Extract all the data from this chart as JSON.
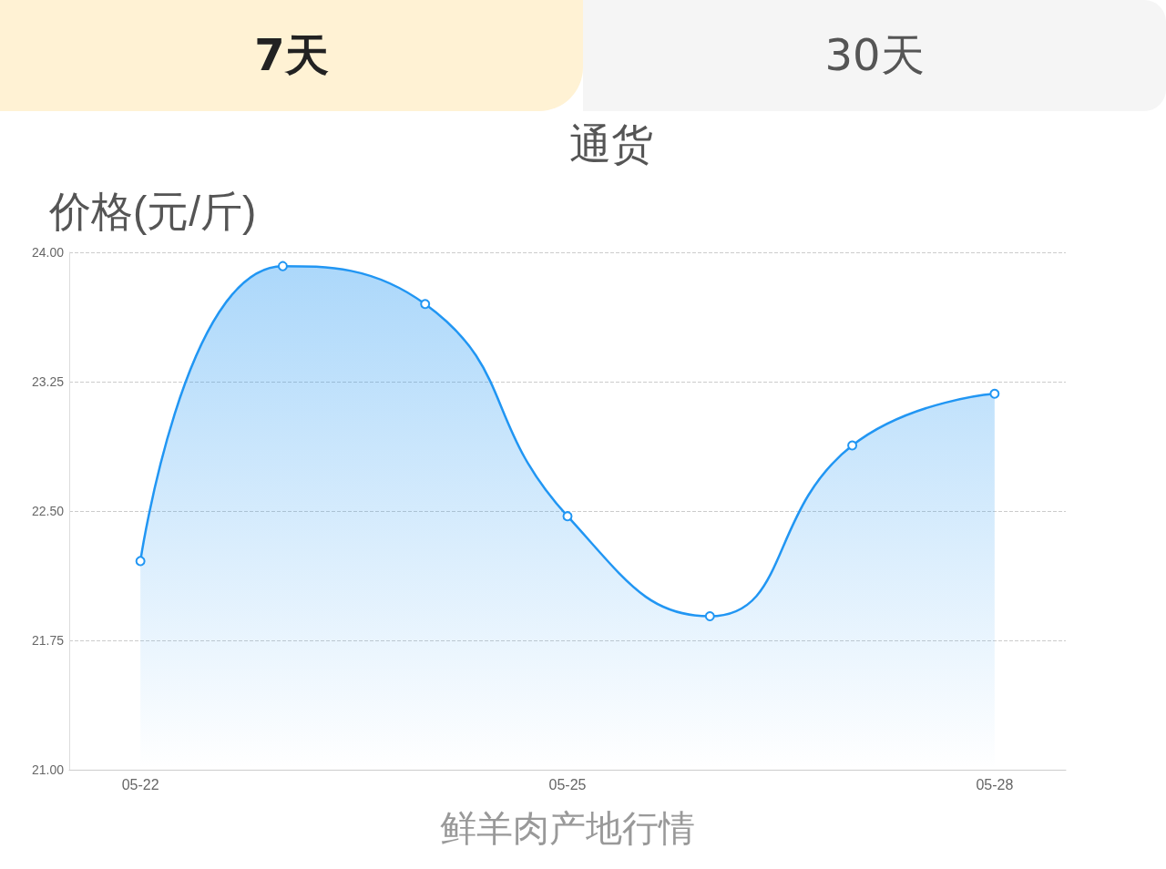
{
  "chart_data": {
    "type": "area",
    "title": "通货",
    "ylabel": "价格(元/斤)",
    "xlabel": "鲜羊肉产地行情",
    "annotations": [
      "7天",
      "30天"
    ],
    "categories": [
      "05-22",
      null,
      null,
      "05-25",
      null,
      null,
      "05-28"
    ],
    "series": [
      {
        "color": "#2196f3",
        "values": [
          22.21,
          23.92,
          23.7,
          22.47,
          21.89,
          22.88,
          23.18
        ]
      }
    ],
    "ylim": [
      21,
      24
    ],
    "yticks": [
      {
        "value": 21,
        "label": "21.00"
      },
      {
        "value": 21.75,
        "label": "21.75"
      },
      {
        "value": 22.5,
        "label": "22.50"
      },
      {
        "value": 23.25,
        "label": "23.25"
      },
      {
        "value": 24,
        "label": "24.00"
      }
    ],
    "grid": "y",
    "marker": "circle",
    "line_style": "solid"
  }
}
